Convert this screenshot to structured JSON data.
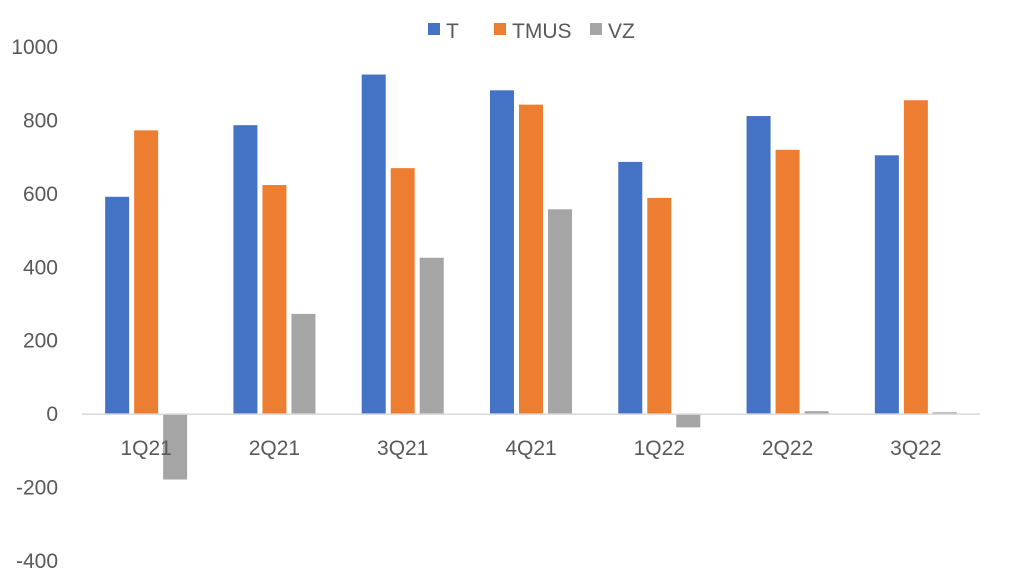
{
  "chart_data": {
    "type": "bar",
    "title": "",
    "xlabel": "",
    "ylabel": "",
    "categories": [
      "1Q21",
      "2Q21",
      "3Q21",
      "4Q21",
      "1Q22",
      "2Q22",
      "3Q22"
    ],
    "series": [
      {
        "name": "T",
        "color": "#4472C4",
        "values": [
          592,
          787,
          925,
          882,
          687,
          812,
          705
        ]
      },
      {
        "name": "TMUS",
        "color": "#ED7D31",
        "values": [
          773,
          624,
          670,
          843,
          589,
          720,
          855
        ]
      },
      {
        "name": "VZ",
        "color": "#A5A5A5",
        "values": [
          -178,
          273,
          426,
          558,
          -36,
          8,
          5
        ]
      }
    ],
    "ylim": [
      -400,
      1000
    ],
    "yticks": [
      -400,
      -200,
      0,
      200,
      400,
      600,
      800,
      1000
    ],
    "grid": false,
    "legend": "top-center"
  }
}
